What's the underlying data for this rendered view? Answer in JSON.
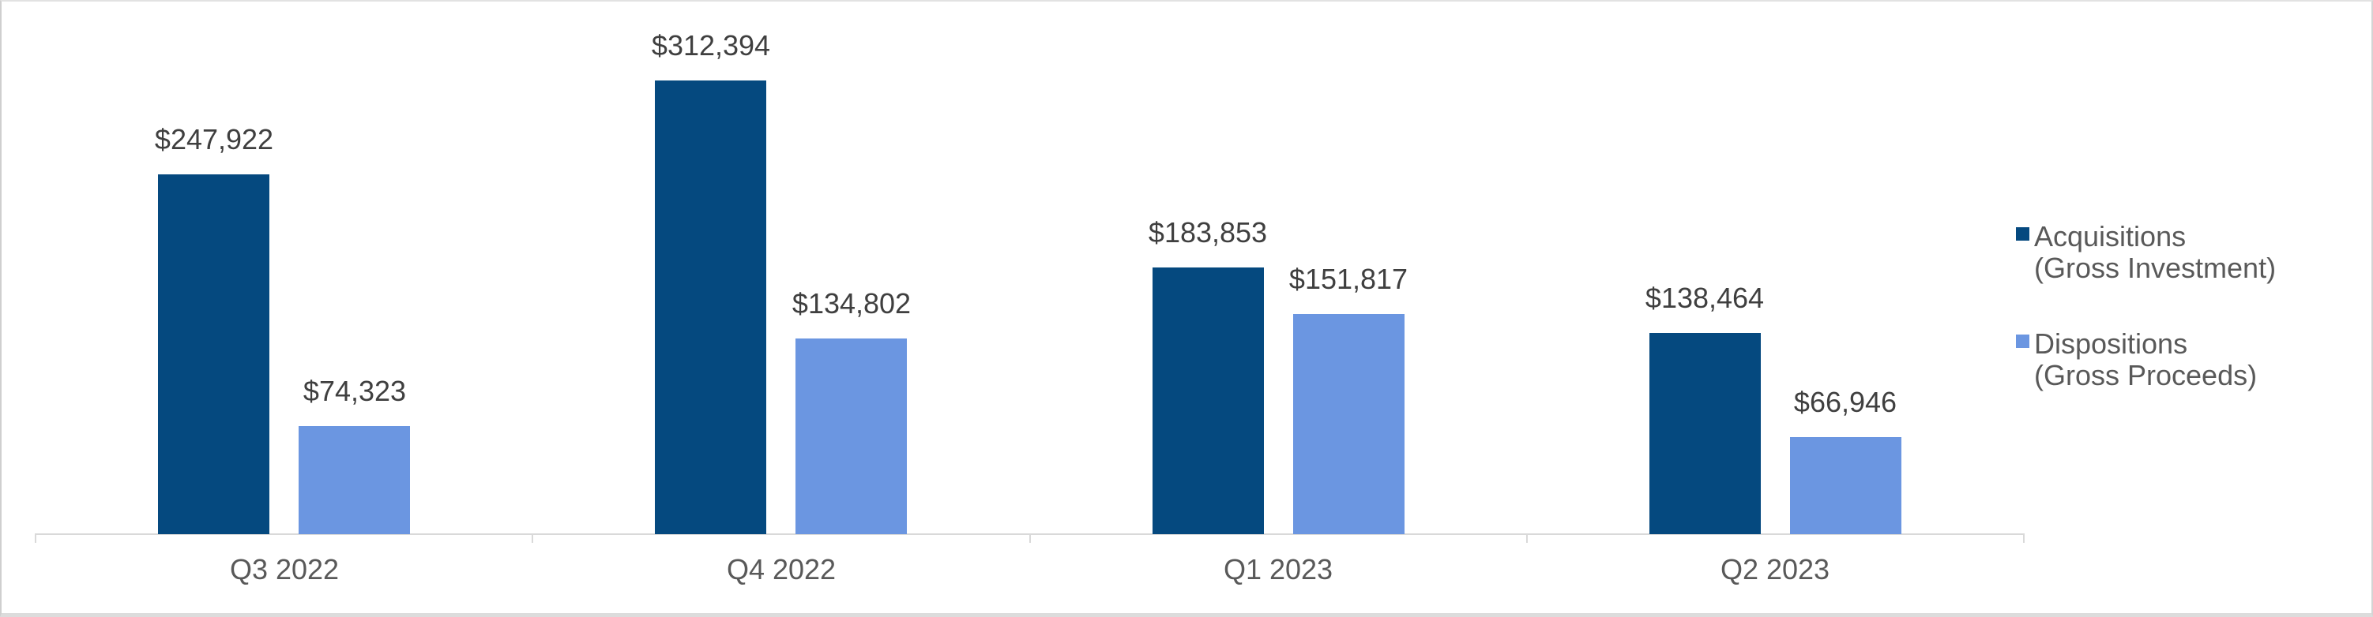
{
  "chart_data": {
    "type": "bar",
    "categories": [
      "Q3 2022",
      "Q4 2022",
      "Q1 2023",
      "Q2 2023"
    ],
    "series": [
      {
        "name": "Acquisitions (Gross Investment)",
        "legend_lines": [
          "Acquisitions",
          "(Gross Investment)"
        ],
        "color": "#05497f",
        "values": [
          247922,
          312394,
          183853,
          138464
        ],
        "labels": [
          "$247,922",
          "$312,394",
          "$183,853",
          "$138,464"
        ]
      },
      {
        "name": "Dispositions (Gross Proceeds)",
        "legend_lines": [
          "Dispositions",
          "(Gross Proceeds)"
        ],
        "color": "#6b96e1",
        "values": [
          74323,
          134802,
          151817,
          66946
        ],
        "labels": [
          "$74,323",
          "$134,802",
          "$151,817",
          "$66,946"
        ]
      }
    ],
    "title": "",
    "xlabel": "",
    "ylabel": "",
    "data_labels_visible": true,
    "grid": false,
    "legend_position": "right",
    "axis": {
      "line_color": "#d9d9d9",
      "label_color": "#595959",
      "data_label_color": "#3f3f3f"
    }
  }
}
